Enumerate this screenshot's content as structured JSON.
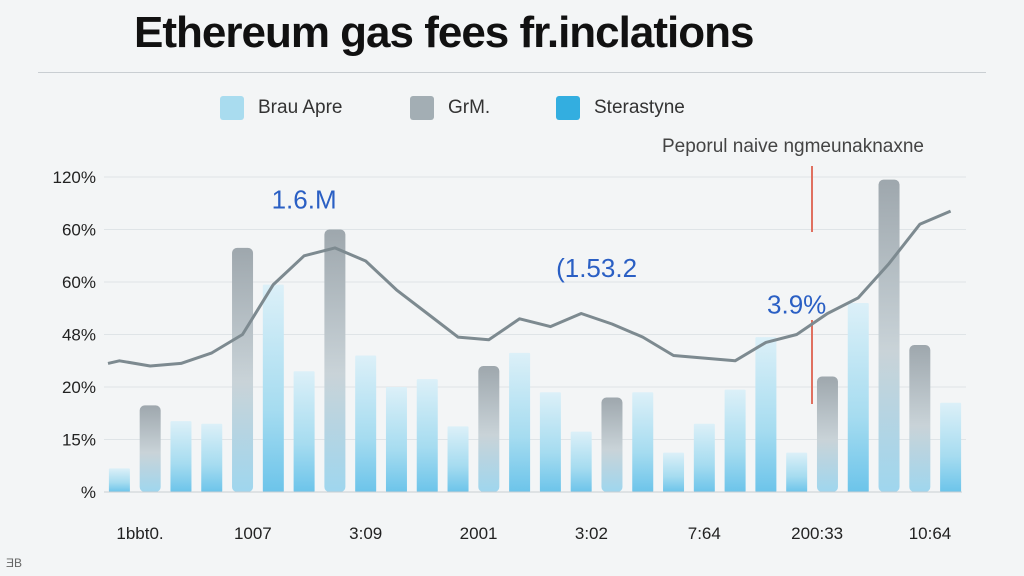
{
  "chart_data": {
    "type": "bar",
    "title": "Ethereum gas fees fr.inclations",
    "legend": [
      {
        "label": "Brau Apre",
        "color": "#a9dcef"
      },
      {
        "label": "GrM.",
        "color": "#a3aeb4"
      },
      {
        "label": "Sterastyne",
        "color": "#33aee0"
      }
    ],
    "annotation": "Peporul naive ngmeunaknaxne",
    "y_tick_labels": [
      "%",
      "15%",
      "20%",
      "48%",
      "60%",
      "60%",
      "120%"
    ],
    "x_tick_labels": [
      "1bbt0.",
      "1007",
      "3:09",
      "2001",
      "3:02",
      "7:64",
      "200:33",
      "10:64"
    ],
    "y_index_range": [
      0,
      6
    ],
    "bars": [
      {
        "v": 0.45,
        "t": "blue"
      },
      {
        "v": 1.65,
        "t": "grey"
      },
      {
        "v": 1.35,
        "t": "blue"
      },
      {
        "v": 1.3,
        "t": "blue"
      },
      {
        "v": 4.65,
        "t": "grey"
      },
      {
        "v": 3.95,
        "t": "blue"
      },
      {
        "v": 2.3,
        "t": "blue"
      },
      {
        "v": 5.0,
        "t": "grey"
      },
      {
        "v": 2.6,
        "t": "blue"
      },
      {
        "v": 2.0,
        "t": "blue"
      },
      {
        "v": 2.15,
        "t": "blue"
      },
      {
        "v": 1.25,
        "t": "blue"
      },
      {
        "v": 2.4,
        "t": "grey"
      },
      {
        "v": 2.65,
        "t": "blue"
      },
      {
        "v": 1.9,
        "t": "blue"
      },
      {
        "v": 1.15,
        "t": "blue"
      },
      {
        "v": 1.8,
        "t": "grey"
      },
      {
        "v": 1.9,
        "t": "blue"
      },
      {
        "v": 0.75,
        "t": "blue"
      },
      {
        "v": 1.3,
        "t": "blue"
      },
      {
        "v": 1.95,
        "t": "blue"
      },
      {
        "v": 2.95,
        "t": "blue"
      },
      {
        "v": 0.75,
        "t": "blue"
      },
      {
        "v": 2.2,
        "t": "grey"
      },
      {
        "v": 3.6,
        "t": "blue"
      },
      {
        "v": 5.95,
        "t": "grey"
      },
      {
        "v": 2.8,
        "t": "grey"
      },
      {
        "v": 1.7,
        "t": "blue"
      }
    ],
    "line": [
      [
        0,
        2.5
      ],
      [
        1,
        2.4
      ],
      [
        2,
        2.45
      ],
      [
        3,
        2.65
      ],
      [
        4,
        3.0
      ],
      [
        5,
        3.95
      ],
      [
        6,
        4.5
      ],
      [
        7,
        4.65
      ],
      [
        8,
        4.4
      ],
      [
        9,
        3.85
      ],
      [
        10,
        3.4
      ],
      [
        11,
        2.95
      ],
      [
        12,
        2.9
      ],
      [
        13,
        3.3
      ],
      [
        14,
        3.15
      ],
      [
        15,
        3.4
      ],
      [
        16,
        3.2
      ],
      [
        17,
        2.95
      ],
      [
        18,
        2.6
      ],
      [
        19,
        2.55
      ],
      [
        20,
        2.5
      ],
      [
        21,
        2.85
      ],
      [
        22,
        3.0
      ],
      [
        23,
        3.4
      ],
      [
        24,
        3.7
      ],
      [
        25,
        4.35
      ],
      [
        26,
        5.1
      ],
      [
        27,
        5.35
      ]
    ],
    "data_labels": [
      {
        "text": "1.6.M",
        "at_bar": 6,
        "y": 5.4
      },
      {
        "text": "(1.53.2",
        "at_bar": 15.5,
        "y": 4.1
      },
      {
        "text": "3.9%",
        "at_bar": 22,
        "y": 3.4
      }
    ]
  }
}
